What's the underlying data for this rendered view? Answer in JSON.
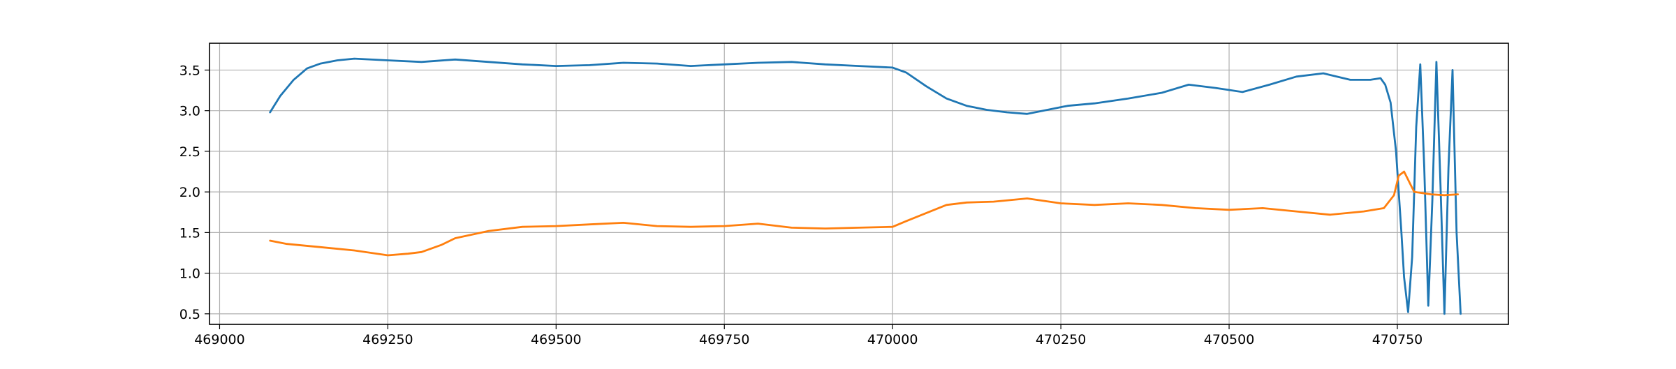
{
  "chart_data": {
    "type": "line",
    "title": "",
    "xlabel": "",
    "ylabel": "",
    "xlim": [
      468985,
      470915
    ],
    "ylim": [
      0.37,
      3.83
    ],
    "grid": true,
    "x_ticks": [
      469000,
      469250,
      469500,
      469750,
      470000,
      470250,
      470500,
      470750
    ],
    "x_tick_labels": [
      "469000",
      "469250",
      "469500",
      "469750",
      "470000",
      "470250",
      "470500",
      "470750"
    ],
    "y_ticks": [
      0.5,
      1.0,
      1.5,
      2.0,
      2.5,
      3.0,
      3.5
    ],
    "y_tick_labels": [
      "0.5",
      "1.0",
      "1.5",
      "2.0",
      "2.5",
      "3.0",
      "3.5"
    ],
    "series": [
      {
        "color": "#1f77b4",
        "x": [
          469075,
          469090,
          469110,
          469130,
          469150,
          469175,
          469200,
          469250,
          469300,
          469350,
          469400,
          469450,
          469500,
          469550,
          469600,
          469650,
          469700,
          469750,
          469800,
          469850,
          469900,
          469950,
          470000,
          470020,
          470050,
          470080,
          470110,
          470140,
          470170,
          470200,
          470230,
          470260,
          470300,
          470350,
          470400,
          470440,
          470480,
          470520,
          470560,
          470600,
          470640,
          470680,
          470710,
          470725,
          470732,
          470740,
          470748,
          470756,
          470760,
          470766,
          470772,
          470778,
          470784,
          470790,
          470796,
          470802,
          470808,
          470814,
          470820,
          470826,
          470832,
          470838,
          470844
        ],
        "y": [
          2.98,
          3.18,
          3.38,
          3.52,
          3.58,
          3.62,
          3.64,
          3.62,
          3.6,
          3.63,
          3.6,
          3.57,
          3.55,
          3.56,
          3.59,
          3.58,
          3.55,
          3.57,
          3.59,
          3.6,
          3.57,
          3.55,
          3.53,
          3.47,
          3.3,
          3.15,
          3.06,
          3.01,
          2.98,
          2.96,
          3.01,
          3.06,
          3.09,
          3.15,
          3.22,
          3.32,
          3.28,
          3.23,
          3.32,
          3.42,
          3.46,
          3.38,
          3.38,
          3.4,
          3.32,
          3.1,
          2.5,
          1.5,
          0.95,
          0.52,
          1.2,
          2.8,
          3.57,
          2.3,
          0.6,
          1.9,
          3.6,
          2.1,
          0.5,
          2.3,
          3.5,
          1.5,
          0.5
        ]
      },
      {
        "color": "#ff7f0e",
        "x": [
          469075,
          469100,
          469150,
          469200,
          469250,
          469280,
          469300,
          469330,
          469350,
          469400,
          469450,
          469500,
          469550,
          469600,
          469650,
          469700,
          469750,
          469800,
          469850,
          469900,
          469950,
          470000,
          470020,
          470050,
          470080,
          470110,
          470150,
          470200,
          470250,
          470300,
          470350,
          470400,
          470450,
          470500,
          470550,
          470600,
          470650,
          470700,
          470730,
          470745,
          470752,
          470760,
          470775,
          470800,
          470820,
          470840
        ],
        "y": [
          1.4,
          1.36,
          1.32,
          1.28,
          1.22,
          1.24,
          1.26,
          1.35,
          1.43,
          1.52,
          1.57,
          1.58,
          1.6,
          1.62,
          1.58,
          1.57,
          1.58,
          1.61,
          1.56,
          1.55,
          1.56,
          1.57,
          1.64,
          1.74,
          1.84,
          1.87,
          1.88,
          1.92,
          1.86,
          1.84,
          1.86,
          1.84,
          1.8,
          1.78,
          1.8,
          1.76,
          1.72,
          1.76,
          1.8,
          1.96,
          2.2,
          2.25,
          2.0,
          1.97,
          1.96,
          1.97
        ]
      }
    ]
  }
}
